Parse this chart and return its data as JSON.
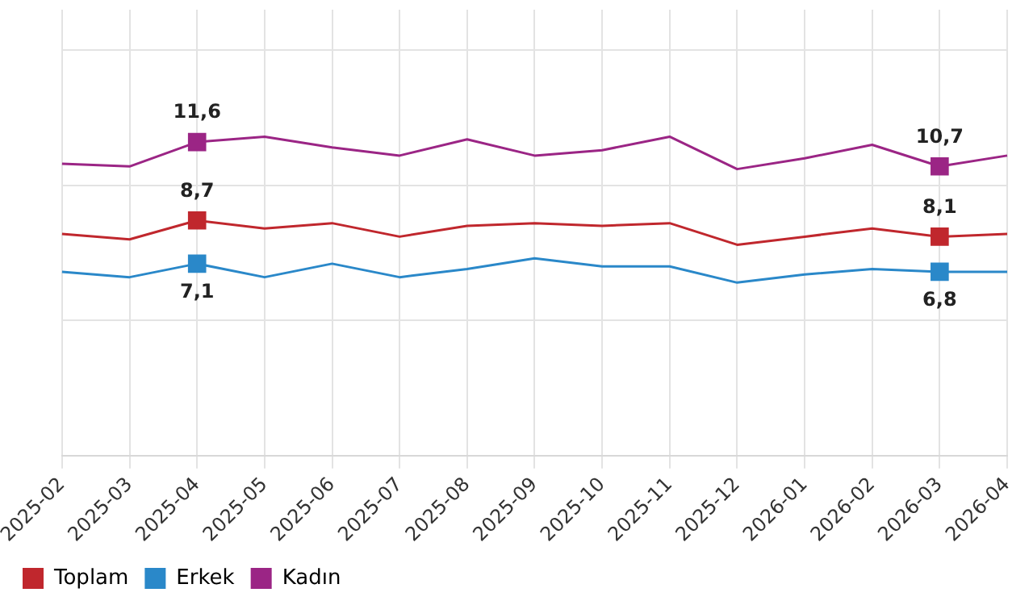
{
  "chart_data": {
    "type": "line",
    "categories": [
      "2025-02",
      "2025-03",
      "2025-04",
      "2025-05",
      "2025-06",
      "2025-07",
      "2025-08",
      "2025-09",
      "2025-10",
      "2025-11",
      "2025-12",
      "2026-01",
      "2026-02",
      "2026-03",
      "2026-04"
    ],
    "series": [
      {
        "name": "Toplam",
        "color": "#c0272d",
        "values": [
          8.2,
          8.0,
          8.7,
          8.4,
          8.6,
          8.1,
          8.5,
          8.6,
          8.5,
          8.6,
          7.8,
          8.1,
          8.4,
          8.1,
          8.2
        ],
        "value_labels": [
          null,
          null,
          "8,7",
          null,
          null,
          null,
          null,
          null,
          null,
          null,
          null,
          null,
          null,
          "8,1",
          null
        ]
      },
      {
        "name": "Erkek",
        "color": "#2a88c9",
        "values": [
          6.8,
          6.6,
          7.1,
          6.6,
          7.1,
          6.6,
          6.9,
          7.3,
          7.0,
          7.0,
          6.4,
          6.7,
          6.9,
          6.8,
          6.8
        ],
        "value_labels": [
          null,
          null,
          "7,1",
          null,
          null,
          null,
          null,
          null,
          null,
          null,
          null,
          null,
          null,
          "6,8",
          null
        ]
      },
      {
        "name": "Kadın",
        "color": "#9b2585",
        "values": [
          10.8,
          10.7,
          11.6,
          11.8,
          11.4,
          11.1,
          11.7,
          11.1,
          11.3,
          11.8,
          10.6,
          11.0,
          11.5,
          10.7,
          11.1
        ],
        "value_labels": [
          null,
          null,
          "11,6",
          null,
          null,
          null,
          null,
          null,
          null,
          null,
          null,
          null,
          null,
          "10,7",
          null
        ]
      }
    ],
    "ylim": [
      0,
      16.5
    ],
    "yticks": [
      0,
      5,
      10,
      15
    ],
    "tick_labels": "x",
    "grid": true,
    "legend": "bottom left",
    "line_style": "solid"
  }
}
